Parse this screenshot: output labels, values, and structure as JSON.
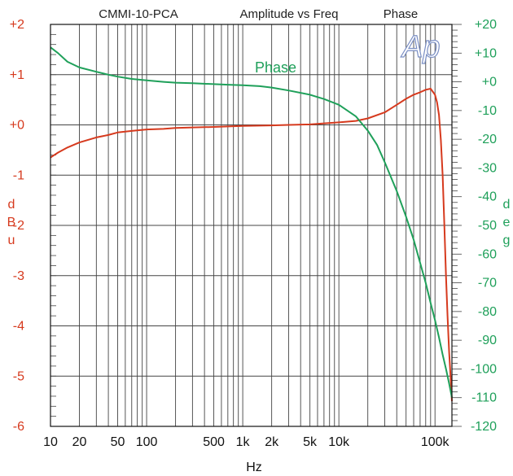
{
  "chart_data": {
    "type": "line",
    "title_left": "CMMI-10-PCA",
    "title_center": "Amplitude vs Freq",
    "title_right": "Phase",
    "logo": "Ap",
    "xlabel": "Hz",
    "ylabel_left": [
      "d",
      "B",
      "u"
    ],
    "ylabel_right": [
      "d",
      "e",
      "g"
    ],
    "x_scale": "log",
    "xlim": [
      10,
      150000
    ],
    "ylim_left": [
      -6,
      2
    ],
    "ylim_right": [
      -120,
      20
    ],
    "grid": true,
    "x_ticks": [
      {
        "value": 10,
        "label": "10"
      },
      {
        "value": 20,
        "label": "20"
      },
      {
        "value": 50,
        "label": "50"
      },
      {
        "value": 100,
        "label": "100"
      },
      {
        "value": 500,
        "label": "500"
      },
      {
        "value": 1000,
        "label": "1k"
      },
      {
        "value": 2000,
        "label": "2k"
      },
      {
        "value": 5000,
        "label": "5k"
      },
      {
        "value": 10000,
        "label": "10k"
      },
      {
        "value": 100000,
        "label": "100k"
      }
    ],
    "y_ticks_left": [
      {
        "value": 2,
        "label": "+2"
      },
      {
        "value": 1,
        "label": "+1"
      },
      {
        "value": 0,
        "label": "+0"
      },
      {
        "value": -1,
        "label": "-1"
      },
      {
        "value": -2,
        "label": "-2"
      },
      {
        "value": -3,
        "label": "-3"
      },
      {
        "value": -4,
        "label": "-4"
      },
      {
        "value": -5,
        "label": "-5"
      },
      {
        "value": -6,
        "label": "-6"
      }
    ],
    "y_ticks_right": [
      {
        "value": 20,
        "label": "+20"
      },
      {
        "value": 10,
        "label": "+10"
      },
      {
        "value": 0,
        "label": "+0"
      },
      {
        "value": -10,
        "label": "-10"
      },
      {
        "value": -20,
        "label": "-20"
      },
      {
        "value": -30,
        "label": "-30"
      },
      {
        "value": -40,
        "label": "-40"
      },
      {
        "value": -50,
        "label": "-50"
      },
      {
        "value": -60,
        "label": "-60"
      },
      {
        "value": -70,
        "label": "-70"
      },
      {
        "value": -80,
        "label": "-80"
      },
      {
        "value": -90,
        "label": "-90"
      },
      {
        "value": -100,
        "label": "-100"
      },
      {
        "value": -110,
        "label": "-110"
      },
      {
        "value": -120,
        "label": "-120"
      }
    ],
    "series": [
      {
        "label": "",
        "axis": "left",
        "color": "#d63a1e",
        "x": [
          10,
          12,
          15,
          20,
          30,
          40,
          50,
          70,
          100,
          150,
          200,
          300,
          500,
          700,
          1000,
          2000,
          3000,
          5000,
          7000,
          10000,
          15000,
          20000,
          30000,
          40000,
          50000,
          60000,
          70000,
          80000,
          90000,
          100000,
          105000,
          110000,
          115000,
          120000,
          125000,
          130000,
          135000,
          140000,
          145000,
          150000
        ],
        "y": [
          -0.65,
          -0.55,
          -0.45,
          -0.35,
          -0.25,
          -0.2,
          -0.15,
          -0.12,
          -0.09,
          -0.08,
          -0.06,
          -0.05,
          -0.04,
          -0.03,
          -0.02,
          -0.01,
          0,
          0.01,
          0.03,
          0.05,
          0.08,
          0.13,
          0.25,
          0.4,
          0.52,
          0.6,
          0.65,
          0.7,
          0.72,
          0.6,
          0.45,
          0.2,
          -0.3,
          -1.0,
          -2.0,
          -3.0,
          -3.8,
          -4.5,
          -5.0,
          -5.5
        ]
      },
      {
        "label": "Phase",
        "axis": "right",
        "color": "#1fa05a",
        "x": [
          10,
          12,
          15,
          20,
          30,
          40,
          50,
          70,
          100,
          150,
          200,
          300,
          500,
          700,
          1000,
          1500,
          2000,
          3000,
          5000,
          7000,
          10000,
          15000,
          20000,
          25000,
          30000,
          40000,
          50000,
          60000,
          70000,
          80000,
          90000,
          100000,
          110000,
          120000,
          130000,
          140000,
          150000
        ],
        "y": [
          12,
          10,
          7,
          5,
          3.5,
          2.5,
          1.8,
          1,
          0.5,
          0,
          -0.3,
          -0.5,
          -0.8,
          -1,
          -1.2,
          -1.5,
          -2,
          -3,
          -4.5,
          -6,
          -8,
          -12,
          -17,
          -22,
          -28,
          -38,
          -47,
          -55,
          -63,
          -70,
          -77,
          -83,
          -89,
          -95,
          -100,
          -105,
          -110
        ]
      }
    ]
  }
}
